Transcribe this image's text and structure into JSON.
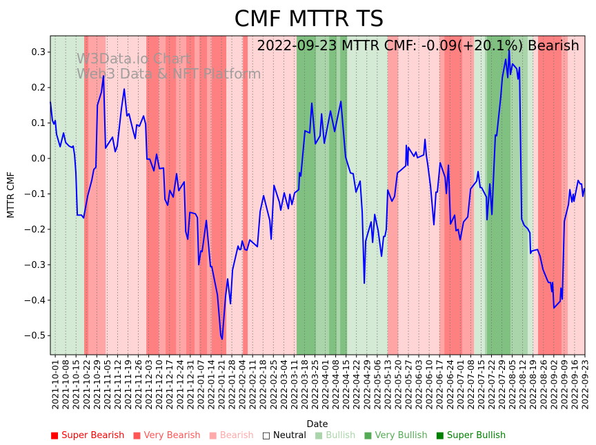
{
  "chart_data": {
    "type": "line",
    "title": "CMF MTTR TS",
    "annotation": "2022-09-23 MTTR CMF: -0.09(+20.1%) Bearish",
    "watermark": [
      "W3Data.io Chart",
      "Web3 Data & NFT Platform"
    ],
    "xlabel": "Date",
    "ylabel": "MTTR CMF",
    "x_unit": "days since 2021-10-01",
    "xlim": [
      -3.3,
      357
    ],
    "ylim": [
      -0.554,
      0.346
    ],
    "yticks": [
      0.3,
      0.2,
      0.1,
      0.0,
      -0.1,
      -0.2,
      -0.3,
      -0.4,
      -0.5
    ],
    "ytick_labels": [
      "0.3",
      "0.2",
      "0.1",
      "0.0",
      "−0.1",
      "−0.2",
      "−0.3",
      "−0.4",
      "−0.5"
    ],
    "xtick_labels": [
      "2021-10-01",
      "2021-10-08",
      "2021-10-15",
      "2021-10-22",
      "2021-10-29",
      "2021-11-05",
      "2021-11-12",
      "2021-11-19",
      "2021-11-26",
      "2021-12-03",
      "2021-12-10",
      "2021-12-17",
      "2021-12-24",
      "2021-12-31",
      "2022-01-07",
      "2022-01-14",
      "2022-01-21",
      "2022-01-28",
      "2022-02-04",
      "2022-02-11",
      "2022-02-18",
      "2022-02-25",
      "2022-03-04",
      "2022-03-11",
      "2022-03-18",
      "2022-03-25",
      "2022-04-01",
      "2022-04-08",
      "2022-04-15",
      "2022-04-22",
      "2022-04-29",
      "2022-05-06",
      "2022-05-13",
      "2022-05-20",
      "2022-05-27",
      "2022-06-03",
      "2022-06-10",
      "2022-06-17",
      "2022-06-24",
      "2022-07-01",
      "2022-07-08",
      "2022-07-15",
      "2022-07-22",
      "2022-07-29",
      "2022-08-05",
      "2022-08-12",
      "2022-08-19",
      "2022-08-26",
      "2022-09-02",
      "2022-09-09",
      "2022-09-16",
      "2022-09-23"
    ],
    "series": [
      {
        "name": "MTTR CMF",
        "color": "#0000ff",
        "points": [
          [
            -3.3,
            0.16
          ],
          [
            -1.9,
            0.107
          ],
          [
            -0.9,
            0.097
          ],
          [
            0,
            0.107
          ],
          [
            0.9,
            0.068
          ],
          [
            3.3,
            0.033
          ],
          [
            5.6,
            0.072
          ],
          [
            7,
            0.045
          ],
          [
            9.3,
            0.035
          ],
          [
            11.2,
            0.031
          ],
          [
            12.1,
            0.035
          ],
          [
            13,
            0.01
          ],
          [
            13.9,
            -0.04
          ],
          [
            14.9,
            -0.16
          ],
          [
            17.7,
            -0.16
          ],
          [
            19.1,
            -0.168
          ],
          [
            20.5,
            -0.136
          ],
          [
            21.9,
            -0.105
          ],
          [
            24.6,
            -0.062
          ],
          [
            26,
            -0.031
          ],
          [
            27.4,
            -0.025
          ],
          [
            28.4,
            0.15
          ],
          [
            31.1,
            0.187
          ],
          [
            32.5,
            0.233
          ],
          [
            33.9,
            0.029
          ],
          [
            36.3,
            0.045
          ],
          [
            38.6,
            0.06
          ],
          [
            40.4,
            0.019
          ],
          [
            41.8,
            0.035
          ],
          [
            44.6,
            0.14
          ],
          [
            46.5,
            0.196
          ],
          [
            48.3,
            0.12
          ],
          [
            49.7,
            0.126
          ],
          [
            52.5,
            0.078
          ],
          [
            53.9,
            0.056
          ],
          [
            54.9,
            0.095
          ],
          [
            56.7,
            0.091
          ],
          [
            59.5,
            0.12
          ],
          [
            60.9,
            0.097
          ],
          [
            61.8,
            -0.002
          ],
          [
            63.7,
            -0.002
          ],
          [
            66.5,
            -0.035
          ],
          [
            68.3,
            0.012
          ],
          [
            70.2,
            -0.029
          ],
          [
            73,
            -0.027
          ],
          [
            73.9,
            -0.115
          ],
          [
            75.8,
            -0.132
          ],
          [
            77.2,
            -0.09
          ],
          [
            79.5,
            -0.109
          ],
          [
            81.8,
            -0.043
          ],
          [
            83.2,
            -0.091
          ],
          [
            86.9,
            -0.066
          ],
          [
            87.9,
            -0.206
          ],
          [
            89.3,
            -0.228
          ],
          [
            90.7,
            -0.152
          ],
          [
            94.4,
            -0.156
          ],
          [
            95.8,
            -0.167
          ],
          [
            96.7,
            -0.3
          ],
          [
            98.1,
            -0.261
          ],
          [
            99,
            -0.263
          ],
          [
            101.8,
            -0.175
          ],
          [
            104.6,
            -0.305
          ],
          [
            105.5,
            -0.305
          ],
          [
            109.3,
            -0.385
          ],
          [
            111.6,
            -0.5
          ],
          [
            112.5,
            -0.51
          ],
          [
            114.8,
            -0.389
          ],
          [
            116.2,
            -0.34
          ],
          [
            118.1,
            -0.41
          ],
          [
            119.5,
            -0.315
          ],
          [
            123.2,
            -0.247
          ],
          [
            124.1,
            -0.257
          ],
          [
            125,
            -0.257
          ],
          [
            126,
            -0.233
          ],
          [
            127.8,
            -0.257
          ],
          [
            129.2,
            -0.259
          ],
          [
            131.1,
            -0.23
          ],
          [
            136.2,
            -0.249
          ],
          [
            138.1,
            -0.15
          ],
          [
            140.4,
            -0.105
          ],
          [
            144.6,
            -0.175
          ],
          [
            145.5,
            -0.228
          ],
          [
            147.4,
            -0.076
          ],
          [
            151.1,
            -0.124
          ],
          [
            152,
            -0.146
          ],
          [
            154.3,
            -0.097
          ],
          [
            157.1,
            -0.142
          ],
          [
            158.1,
            -0.101
          ],
          [
            159.5,
            -0.13
          ],
          [
            161.3,
            -0.097
          ],
          [
            164.1,
            -0.088
          ],
          [
            164.6,
            -0.04
          ],
          [
            165.5,
            -0.05
          ],
          [
            168.3,
            0.078
          ],
          [
            171.5,
            0.072
          ],
          [
            172.9,
            0.156
          ],
          [
            175.3,
            0.041
          ],
          [
            178.5,
            0.064
          ],
          [
            179.5,
            0.126
          ],
          [
            181.3,
            0.043
          ],
          [
            185.5,
            0.134
          ],
          [
            188.3,
            0.076
          ],
          [
            192.5,
            0.161
          ],
          [
            193.9,
            0.091
          ],
          [
            195.7,
            0.004
          ],
          [
            199,
            -0.041
          ],
          [
            200.8,
            -0.043
          ],
          [
            202.7,
            -0.095
          ],
          [
            205.5,
            -0.064
          ],
          [
            206.9,
            -0.152
          ],
          [
            208.3,
            -0.352
          ],
          [
            209.2,
            -0.233
          ],
          [
            212.9,
            -0.179
          ],
          [
            213.9,
            -0.237
          ],
          [
            215.3,
            -0.158
          ],
          [
            217.6,
            -0.204
          ],
          [
            219.9,
            -0.276
          ],
          [
            221.3,
            -0.22
          ],
          [
            222.2,
            -0.22
          ],
          [
            223.1,
            -0.2
          ],
          [
            224.1,
            -0.089
          ],
          [
            226.9,
            -0.121
          ],
          [
            228.7,
            -0.107
          ],
          [
            230.6,
            -0.041
          ],
          [
            232.4,
            -0.035
          ],
          [
            236.2,
            -0.021
          ],
          [
            236.6,
            0.037
          ],
          [
            237.6,
            -0.019
          ],
          [
            238,
            0.031
          ],
          [
            241.7,
            0.006
          ],
          [
            243.1,
            0.018
          ],
          [
            244.1,
            0.002
          ],
          [
            248.3,
            0.01
          ],
          [
            249.2,
            0.054
          ],
          [
            250.1,
            0.008
          ],
          [
            251,
            -0.016
          ],
          [
            252.9,
            -0.078
          ],
          [
            255.2,
            -0.187
          ],
          [
            256.6,
            -0.095
          ],
          [
            257.5,
            -0.095
          ],
          [
            259.4,
            -0.012
          ],
          [
            262.7,
            -0.053
          ],
          [
            263.6,
            -0.099
          ],
          [
            265,
            -0.019
          ],
          [
            266.4,
            -0.185
          ],
          [
            269.2,
            -0.16
          ],
          [
            270.1,
            -0.204
          ],
          [
            271.5,
            -0.2
          ],
          [
            272.9,
            -0.23
          ],
          [
            275.2,
            -0.179
          ],
          [
            278,
            -0.165
          ],
          [
            279.9,
            -0.086
          ],
          [
            284,
            -0.064
          ],
          [
            285,
            -0.037
          ],
          [
            286.4,
            -0.082
          ],
          [
            287.3,
            -0.082
          ],
          [
            290.6,
            -0.109
          ],
          [
            291,
            -0.173
          ],
          [
            292.9,
            -0.072
          ],
          [
            294.3,
            -0.158
          ],
          [
            296.6,
            0.066
          ],
          [
            297.5,
            0.064
          ],
          [
            300.3,
            0.175
          ],
          [
            301.3,
            0.228
          ],
          [
            303.6,
            0.28
          ],
          [
            305,
            0.228
          ],
          [
            305.9,
            0.305
          ],
          [
            306.8,
            0.237
          ],
          [
            308.2,
            0.267
          ],
          [
            311,
            0.253
          ],
          [
            311.9,
            0.224
          ],
          [
            312.9,
            0.257
          ],
          [
            314.3,
            -0.171
          ],
          [
            316.1,
            -0.189
          ],
          [
            318.4,
            -0.198
          ],
          [
            319.9,
            -0.21
          ],
          [
            320.3,
            -0.268
          ],
          [
            321.2,
            -0.261
          ],
          [
            325,
            -0.257
          ],
          [
            326.8,
            -0.276
          ],
          [
            328.7,
            -0.313
          ],
          [
            331.5,
            -0.342
          ],
          [
            332.4,
            -0.35
          ],
          [
            333.8,
            -0.35
          ],
          [
            334.7,
            -0.376
          ],
          [
            335.2,
            -0.35
          ],
          [
            336.1,
            -0.422
          ],
          [
            340.3,
            -0.403
          ],
          [
            340.8,
            -0.366
          ],
          [
            341.7,
            -0.397
          ],
          [
            343.1,
            -0.177
          ],
          [
            345.9,
            -0.13
          ],
          [
            346.8,
            -0.088
          ],
          [
            348.2,
            -0.123
          ],
          [
            349.1,
            -0.101
          ],
          [
            349.6,
            -0.121
          ],
          [
            352.4,
            -0.062
          ],
          [
            353.8,
            -0.072
          ],
          [
            354.7,
            -0.072
          ],
          [
            355.6,
            -0.107
          ],
          [
            356.6,
            -0.084
          ]
        ]
      }
    ],
    "bands": [
      [
        -3.3,
        19.5,
        "Bullish"
      ],
      [
        19.5,
        22.3,
        "Super Bearish"
      ],
      [
        22.3,
        33.9,
        "Very Bearish"
      ],
      [
        33.9,
        61.4,
        "Bearish"
      ],
      [
        61.4,
        69.7,
        "Super Bearish"
      ],
      [
        69.7,
        74.4,
        "Very Bearish"
      ],
      [
        74.4,
        81.4,
        "Super Bearish"
      ],
      [
        81.4,
        88.3,
        "Very Bearish"
      ],
      [
        88.3,
        93.9,
        "Super Bearish"
      ],
      [
        93.9,
        97.2,
        "Very Bearish"
      ],
      [
        97.2,
        102.3,
        "Super Bearish"
      ],
      [
        102.3,
        105.5,
        "Very Bearish"
      ],
      [
        105.5,
        115.3,
        "Super Bearish"
      ],
      [
        115.3,
        126.5,
        "Bearish"
      ],
      [
        126.5,
        129.7,
        "Super Bearish"
      ],
      [
        129.7,
        162.7,
        "Bearish"
      ],
      [
        162.7,
        175.7,
        "Super Bullish"
      ],
      [
        175.7,
        184.6,
        "Very Bullish"
      ],
      [
        184.6,
        189.7,
        "Super Bullish"
      ],
      [
        189.7,
        192,
        "Very Bullish"
      ],
      [
        192,
        196.7,
        "Super Bullish"
      ],
      [
        196.7,
        224.1,
        "Bullish"
      ],
      [
        224.1,
        231.1,
        "Very Bearish"
      ],
      [
        231.1,
        259,
        "Bearish"
      ],
      [
        259,
        262.3,
        "Very Bearish"
      ],
      [
        262.3,
        274.3,
        "Super Bearish"
      ],
      [
        274.3,
        282.2,
        "Very Bearish"
      ],
      [
        282.2,
        289.6,
        "Bullish"
      ],
      [
        289.6,
        291,
        "Very Bullish"
      ],
      [
        291,
        306.8,
        "Super Bullish"
      ],
      [
        306.8,
        309.2,
        "Very Bullish"
      ],
      [
        309.2,
        318.4,
        "Very Bullish"
      ],
      [
        318.4,
        322.2,
        "Bullish"
      ],
      [
        322.2,
        325.4,
        "Bearish"
      ],
      [
        325.4,
        341.2,
        "Super Bearish"
      ],
      [
        341.2,
        345.4,
        "Very Bearish"
      ],
      [
        345.4,
        357,
        "Bearish"
      ]
    ],
    "band_colors": {
      "Super Bearish": "#ff8080",
      "Very Bearish": "#ffa5a5",
      "Bearish": "#ffd5d5",
      "Bullish": "#d5ead5",
      "Very Bullish": "#aad5aa",
      "Super Bullish": "#80c080"
    },
    "legend": [
      {
        "label": "Super Bearish",
        "color": "#ff0000",
        "marker": "■"
      },
      {
        "label": "Very Bearish",
        "color": "#ff5555",
        "marker": "■"
      },
      {
        "label": "Bearish",
        "color": "#ffaaaa",
        "marker": "■"
      },
      {
        "label": "Neutral",
        "color": "#000000",
        "marker": "□"
      },
      {
        "label": "Bullish",
        "color": "#aad5aa",
        "marker": "■"
      },
      {
        "label": "Very Bullish",
        "color": "#55aa55",
        "marker": "■"
      },
      {
        "label": "Super Bullish",
        "color": "#008000",
        "marker": "■"
      }
    ]
  }
}
